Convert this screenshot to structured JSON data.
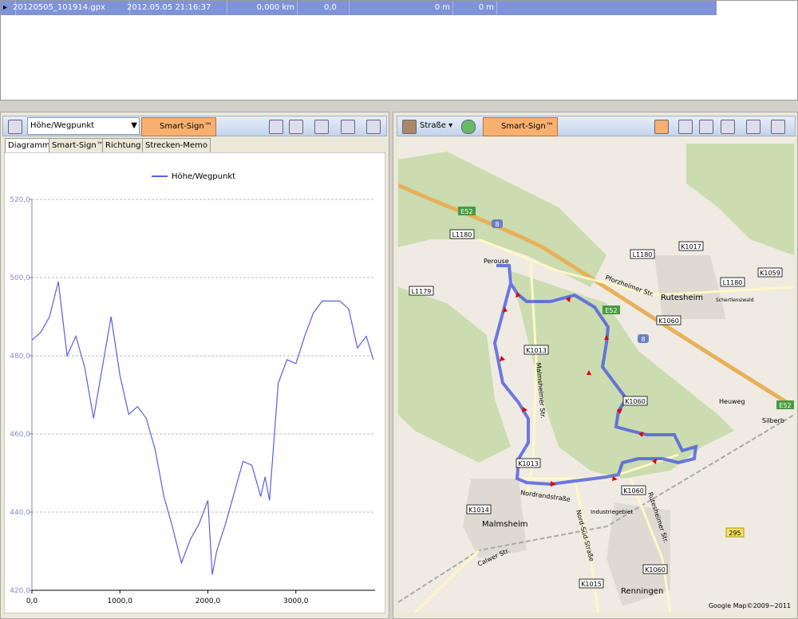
{
  "file_list": {
    "rows": [
      [
        "20120505_101914.gpx",
        "2012.05.05 21:16:37",
        "0,000 km",
        "0,0",
        "0 m",
        "0 m"
      ]
    ]
  },
  "left_panel": {
    "view_select": "Höhe/Wegpunkt",
    "smart_sign_button": "Smart-Sign™",
    "tabs": [
      "Diagramm",
      "Smart-Sign™",
      "Richtung",
      "Strecken-Memo"
    ]
  },
  "chart_data": {
    "type": "line",
    "x": [
      0,
      100,
      200,
      300,
      400,
      500,
      600,
      700,
      800,
      900,
      1000,
      1100,
      1200,
      1300,
      1400,
      1500,
      1600,
      1700,
      1800,
      1900,
      2000,
      2050,
      2100,
      2200,
      2300,
      2400,
      2500,
      2600,
      2650,
      2700,
      2800,
      2900,
      3000,
      3100,
      3200,
      3300,
      3400,
      3500,
      3600,
      3700,
      3800,
      3880
    ],
    "series": [
      {
        "name": "Höhe/Wegpunkt",
        "color": "#5a5ee0",
        "values": [
          484,
          486,
          490,
          499,
          480,
          485,
          477,
          464,
          477,
          490,
          475,
          465,
          467,
          464,
          456,
          444,
          436,
          427,
          433,
          437,
          443,
          424,
          430,
          437,
          445,
          453,
          452,
          444,
          449,
          443,
          473,
          479,
          478,
          485,
          491,
          494,
          494,
          494,
          492,
          482,
          485,
          479
        ]
      }
    ],
    "xlim": [
      0,
      3900
    ],
    "ylim": [
      420,
      520
    ],
    "xticks": [
      {
        "value": 0,
        "label": "0,0"
      },
      {
        "value": 1000,
        "label": "1000,0"
      },
      {
        "value": 2000,
        "label": "2000,0"
      },
      {
        "value": 3000,
        "label": "3000,0"
      }
    ],
    "yticks": [
      {
        "value": 420,
        "label": "420,0"
      },
      {
        "value": 440,
        "label": "440,0"
      },
      {
        "value": 460,
        "label": "460,0"
      },
      {
        "value": 480,
        "label": "480,0"
      },
      {
        "value": 500,
        "label": "500,0"
      },
      {
        "value": 520,
        "label": "520,0"
      }
    ],
    "grid": true,
    "legend": "top"
  },
  "right_panel": {
    "map_type": "Straße",
    "smart_sign_button": "Smart-Sign™"
  },
  "map": {
    "labels": [
      "E52",
      "8",
      "L1180",
      "Perouse",
      "L1179",
      "K1013",
      "Malmsheimer Str.",
      "L1180",
      "K1017",
      "K1059",
      "L1180",
      "Pforzheimer Str.",
      "E52",
      "Rutesheim",
      "Schertlensiwald",
      "K1060",
      "8",
      "K1060",
      "Heuweg",
      "Silberb",
      "E52",
      "K1013",
      "Nordrandstraße",
      "K1060",
      "K1014",
      "Malmsheim",
      "Industriegebiet",
      "Nord-Süd-Straße",
      "Rutesheimer Str.",
      "295",
      "Calwer Str.",
      "K1060",
      "K1015",
      "Renningen"
    ],
    "copyright": "Google Map©2009~2011"
  }
}
